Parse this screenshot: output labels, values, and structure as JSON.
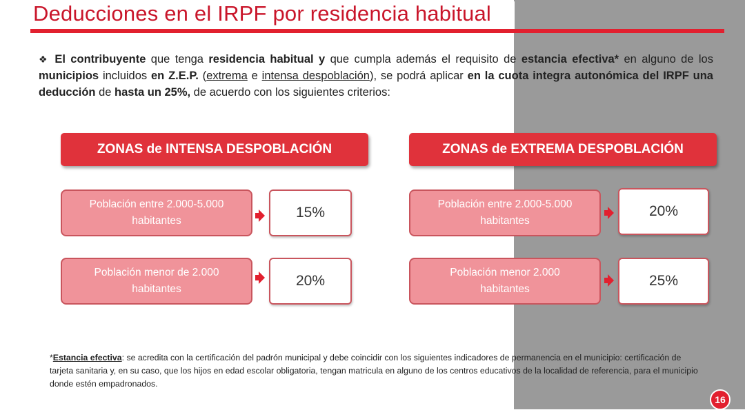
{
  "title": "Deducciones en el IRPF por residencia habitual",
  "intro": {
    "bullet": "❖",
    "p1_bold": "El contribuyente",
    "p2": " que tenga ",
    "p3_bold": "residencia habitual y",
    "p4": " que cumpla además el requisito de ",
    "p5_bold": "estancia efectiva*",
    "p6": " en alguno de los ",
    "p7_bold": "municipios",
    "p8": " incluidos ",
    "p9_bold": "en Z.E.P.",
    "p10": " (",
    "p11_u": "extrema",
    "p12": " e ",
    "p13_u": "intensa despoblación",
    "p14": "), se podrá aplicar ",
    "p15_bold": "en la cuota integra autonómica del IRPF una deducción",
    "p16": " de ",
    "p17_bold": "hasta un 25%,",
    "p18": " de acuerdo con los siguientes criterios:"
  },
  "zones": {
    "intensa": {
      "header": "ZONAS  de INTENSA DESPOBLACIÓN",
      "row1": {
        "line1": "Población entre 2.000-5.000",
        "line2": "habitantes",
        "pct": "15%"
      },
      "row2": {
        "line1": "Población menor de 2.000",
        "line2": "habitantes",
        "pct": "20%"
      }
    },
    "extrema": {
      "header": "ZONAS de EXTREMA DESPOBLACIÓN",
      "row1": {
        "line1": "Población entre 2.000-5.000",
        "line2": "habitantes",
        "pct": "20%"
      },
      "row2": {
        "line1": "Población menor 2.000",
        "line2": "habitantes",
        "pct": "25%"
      }
    }
  },
  "footnote": {
    "star": "*",
    "term": "Estancia efectiva",
    "text": ": se acredita con la certificación del padrón municipal y debe coincidir con los siguientes indicadores de permanencia en el municipio: certificación de tarjeta sanitaria y, en su caso, que los hijos en edad escolar obligatoria, tengan matricula en alguno de los centros educativos de la localidad de referencia, para el municipio donde estén empadronados."
  },
  "page_number": "16",
  "colors": {
    "accent": "#e2202f",
    "box_fill": "#f0939a",
    "title": "#c9152a"
  }
}
